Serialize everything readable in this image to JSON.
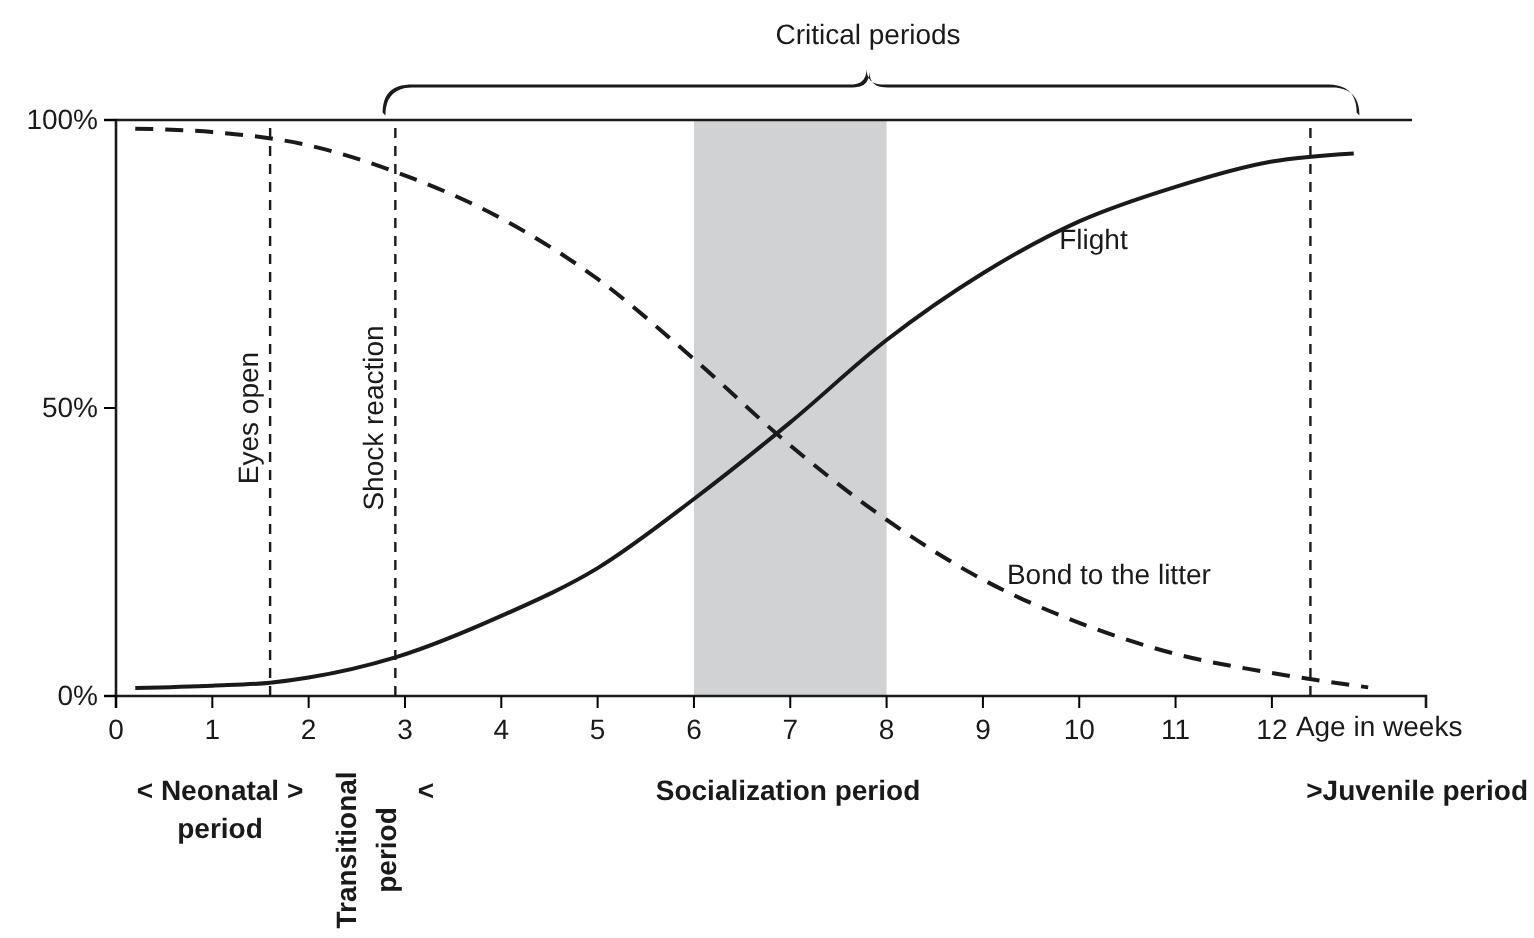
{
  "chart_data": {
    "type": "line",
    "x": [
      0.2,
      1,
      1.6,
      2,
      2.9,
      4,
      5,
      6,
      7,
      8,
      9,
      10,
      11,
      12,
      12.85
    ],
    "xlabel": "Age in weeks",
    "series": [
      {
        "name": "Flight",
        "color": "#1a1a1a",
        "line_style": "solid",
        "values": [
          1.4,
          1.8,
          2.3,
          3.2,
          6.7,
          13.9,
          22.2,
          34.2,
          47.5,
          61.8,
          73.4,
          82.4,
          88.4,
          92.8,
          94.2
        ]
      },
      {
        "name": "Bond to the litter",
        "color": "#1a1a1a",
        "line_style": "dashed",
        "x": [
          0.2,
          1,
          2,
          2.9,
          4,
          5,
          6,
          7,
          8,
          9,
          10,
          11,
          12,
          13
        ],
        "values": [
          98.5,
          97.9,
          95.6,
          91,
          82.9,
          72.4,
          58.5,
          43.5,
          30.6,
          20.2,
          12.7,
          7.3,
          4,
          1.5
        ]
      }
    ],
    "xlim": [
      0,
      13.6
    ],
    "xticks": [
      0,
      1,
      2,
      3,
      4,
      5,
      6,
      7,
      8,
      9,
      10,
      11,
      12
    ],
    "ylim": [
      0,
      100
    ],
    "yticks": [
      {
        "value": 0,
        "label": "0%"
      },
      {
        "value": 50,
        "label": "50%"
      },
      {
        "value": 100,
        "label": "100%"
      }
    ],
    "ref_lines": [
      {
        "axis": "x",
        "value": 1.6,
        "label": "Eyes open",
        "line_style": "dashed",
        "color": "#1a1a1a"
      },
      {
        "axis": "x",
        "value": 2.9,
        "label": "Shock reaction",
        "line_style": "dashed",
        "color": "#1a1a1a"
      },
      {
        "axis": "x",
        "value": 12.4,
        "line_style": "dashed",
        "color": "#1a1a1a"
      }
    ],
    "bands": [
      {
        "axis": "x",
        "from": 6,
        "to": 8,
        "color": "#d1d2d4"
      }
    ],
    "annotations": [
      "Critical periods",
      "< Neonatal > period",
      "Transitional period",
      "<",
      "Socialization period",
      ">Juvenile period"
    ],
    "legend": false,
    "grid": false
  }
}
